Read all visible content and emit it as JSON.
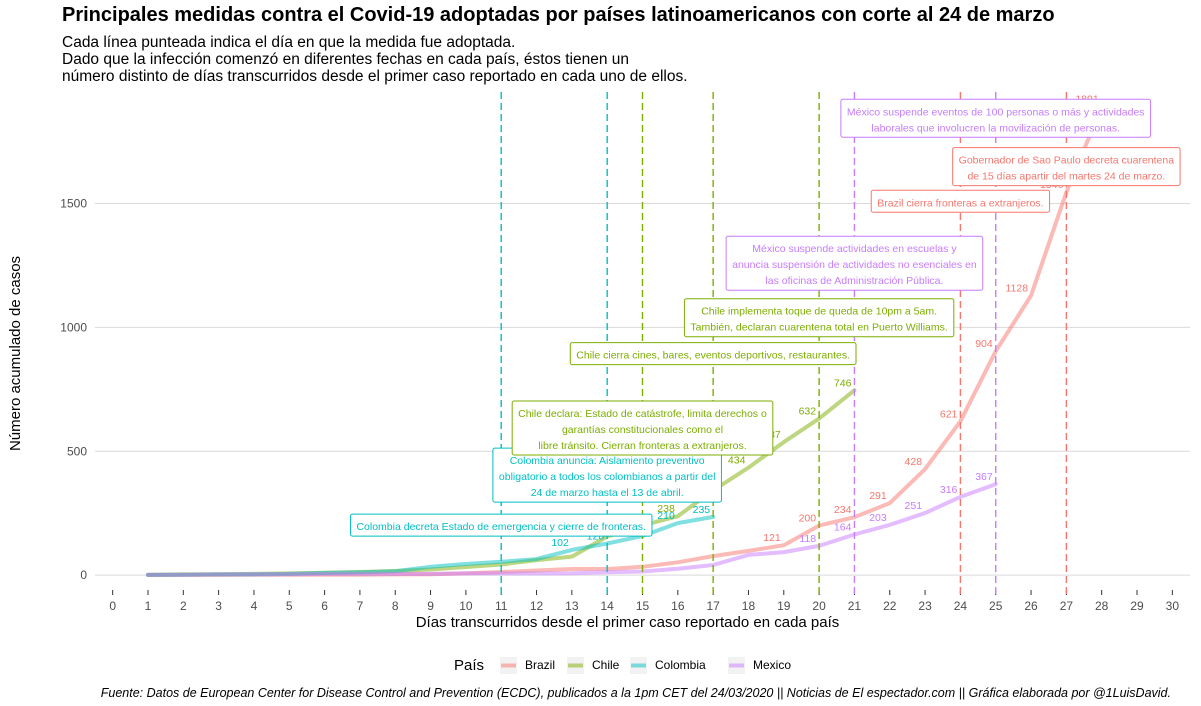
{
  "title": "Principales medidas contra el Covid-19 adoptadas por países latinoamericanos con corte al 24 de marzo",
  "subtitle": [
    "Cada línea punteada indica el día en que la medida fue adoptada.",
    "Dado que la infección comenzó en diferentes fechas en cada país, éstos tienen un",
    "número distinto de días transcurridos desde el primer caso reportado en cada uno de ellos."
  ],
  "caption": "Fuente: Datos de European Center for Disease Control and Prevention (ECDC), publicados a la 1pm CET del 24/03/2020 || Noticias de El espectador.com || Gráfica elaborada por @1LuisDavid.",
  "chart_data": {
    "type": "line",
    "xlabel": "Días transcurridos desde el primer caso reportado en cada país",
    "ylabel": "Número acumulado de casos",
    "xlim": [
      -0.5,
      30.5
    ],
    "ylim": [
      -80,
      1950
    ],
    "x_ticks": [
      0,
      1,
      2,
      3,
      4,
      5,
      6,
      7,
      8,
      9,
      10,
      11,
      12,
      13,
      14,
      15,
      16,
      17,
      18,
      19,
      20,
      21,
      22,
      23,
      24,
      25,
      26,
      27,
      28,
      29,
      30
    ],
    "y_ticks": [
      0,
      500,
      1000,
      1500
    ],
    "grid": true,
    "legend": {
      "title": "País",
      "position": "bottom"
    },
    "series": [
      {
        "name": "Brazil",
        "color": "#F8766D",
        "x": [
          1,
          2,
          3,
          4,
          5,
          6,
          7,
          8,
          9,
          10,
          11,
          12,
          13,
          14,
          15,
          16,
          17,
          18,
          19,
          20,
          21,
          22,
          23,
          24,
          25,
          26,
          27,
          28
        ],
        "y": [
          1,
          1,
          1,
          2,
          2,
          2,
          2,
          3,
          4,
          7,
          13,
          19,
          25,
          25,
          34,
          52,
          77,
          98,
          121,
          200,
          234,
          291,
          428,
          621,
          904,
          1128,
          1546,
          1891
        ],
        "labels": {
          "19": "121",
          "20": "200",
          "21": "234",
          "22": "291",
          "23": "428",
          "24": "621",
          "25": "904",
          "26": "1128",
          "27": "1546",
          "28": "1891"
        }
      },
      {
        "name": "Chile",
        "color": "#7CAE00",
        "x": [
          1,
          2,
          3,
          4,
          5,
          6,
          7,
          8,
          9,
          10,
          11,
          12,
          13,
          14,
          15,
          16,
          17,
          18,
          19,
          20,
          21
        ],
        "y": [
          1,
          3,
          4,
          5,
          7,
          10,
          13,
          17,
          23,
          33,
          43,
          61,
          75,
          156,
          201,
          238,
          342,
          434,
          537,
          632,
          746
        ],
        "labels": {
          "14": "156",
          "15": "201",
          "16": "238",
          "17": "342",
          "18": "434",
          "19": "537",
          "20": "632",
          "21": "746"
        }
      },
      {
        "name": "Colombia",
        "color": "#00BFC4",
        "x": [
          1,
          2,
          3,
          4,
          5,
          6,
          7,
          8,
          9,
          10,
          11,
          12,
          13,
          14,
          15,
          16,
          17
        ],
        "y": [
          1,
          2,
          3,
          3,
          5,
          9,
          12,
          16,
          34,
          45,
          54,
          65,
          102,
          128,
          158,
          210,
          235
        ],
        "labels": {
          "13": "102",
          "14": "128",
          "15": "158",
          "16": "210",
          "17": "235"
        }
      },
      {
        "name": "Mexico",
        "color": "#C77CFF",
        "x": [
          1,
          2,
          3,
          4,
          5,
          6,
          7,
          8,
          9,
          10,
          11,
          12,
          13,
          14,
          15,
          16,
          17,
          18,
          19,
          20,
          21,
          22,
          23,
          24,
          25
        ],
        "y": [
          1,
          2,
          3,
          4,
          4,
          5,
          5,
          5,
          5,
          7,
          7,
          7,
          8,
          12,
          15,
          26,
          41,
          82,
          93,
          118,
          164,
          203,
          251,
          316,
          367
        ],
        "labels": {
          "20": "118",
          "21": "164",
          "22": "203",
          "23": "251",
          "24": "316",
          "25": "367"
        }
      }
    ],
    "vlines": [
      {
        "x": 11,
        "color": "#00BFC4"
      },
      {
        "x": 14,
        "color": "#00BFC4"
      },
      {
        "x": 15,
        "color": "#7CAE00"
      },
      {
        "x": 17,
        "color": "#7CAE00"
      },
      {
        "x": 20,
        "color": "#7CAE00"
      },
      {
        "x": 21,
        "color": "#C77CFF"
      },
      {
        "x": 24,
        "color": "#F8766D"
      },
      {
        "x": 25,
        "color": "#C77CFF"
      },
      {
        "x": 27,
        "color": "#F8766D"
      }
    ],
    "annotations": [
      {
        "color": "#00BFC4",
        "x": 11,
        "y": 198,
        "lines": [
          "Colombia decreta Estado de emergencia y cierre de fronteras."
        ]
      },
      {
        "color": "#00BFC4",
        "x": 14,
        "y": 400,
        "lines": [
          "Colombia anuncia: Aislamiento preventivo",
          "obligatorio a todos los colombianos a partir del",
          "24 de marzo hasta el 13 de abril."
        ]
      },
      {
        "color": "#7CAE00",
        "x": 15,
        "y": 590,
        "lines": [
          "Chile declara: Estado de catástrofe, limita derechos o",
          "garantías constitucionales como el",
          "libre tránsito. Cierran fronteras a extranjeros."
        ]
      },
      {
        "color": "#7CAE00",
        "x": 17,
        "y": 890,
        "lines": [
          "Chile cierra cines, bares, eventos deportivos, restaurantes."
        ]
      },
      {
        "color": "#7CAE00",
        "x": 20,
        "y": 1035,
        "lines": [
          "Chile implementa toque de queda de 10pm a 5am.",
          "También, declaran cuarentena total en Puerto Williams."
        ]
      },
      {
        "color": "#C77CFF",
        "x": 21,
        "y": 1255,
        "lines": [
          "México suspende actividades en escuelas y",
          "anuncia suspensión de actividades no esenciales en",
          "las oficinas de Administración Pública."
        ]
      },
      {
        "color": "#F8766D",
        "x": 24,
        "y": 1505,
        "lines": [
          "Brazil cierra fronteras a extranjeros."
        ]
      },
      {
        "color": "#F8766D",
        "x": 27,
        "y": 1645,
        "lines": [
          "Gobernador de Sao Paulo decreta cuarentena",
          "de 15 días apartir del martes 24 de marzo."
        ]
      },
      {
        "color": "#C77CFF",
        "x": 25,
        "y": 1840,
        "lines": [
          "México suspende eventos de 100 personas o más y actividades",
          "laborales que involucren la movilización de personas."
        ]
      }
    ]
  }
}
